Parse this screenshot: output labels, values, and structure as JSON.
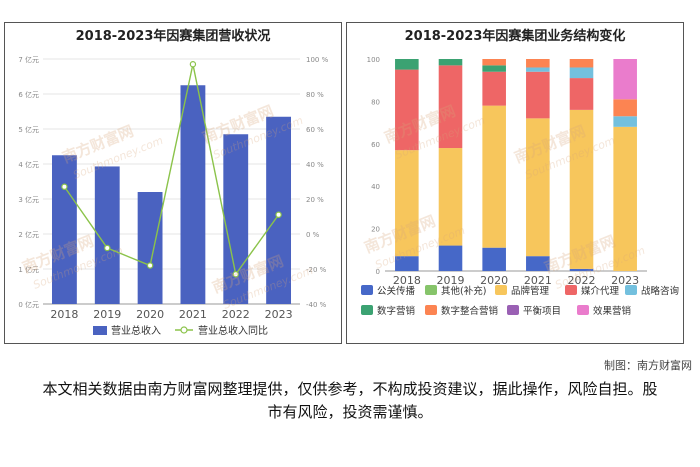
{
  "chart_data": [
    {
      "type": "bar+line",
      "title": "2018-2023年因赛集团营收状况",
      "categories": [
        "2018",
        "2019",
        "2020",
        "2021",
        "2022",
        "2023"
      ],
      "series": [
        {
          "name": "营业总收入",
          "type": "bar",
          "axis": "left",
          "unit": "亿元",
          "values": [
            4.25,
            3.93,
            3.2,
            6.25,
            4.85,
            5.35
          ],
          "color": "#4a62c0"
        },
        {
          "name": "营业总收入同比",
          "type": "line",
          "axis": "right",
          "unit": "%",
          "values": [
            27,
            -8,
            -18,
            97,
            -23,
            11
          ],
          "color": "#8bc34a"
        }
      ],
      "y_left": {
        "min": 0,
        "max": 7,
        "step": 1,
        "tick_suffix": "亿元"
      },
      "y_right": {
        "min": -40,
        "max": 100,
        "step": 20,
        "tick_suffix": "%"
      },
      "grid": true,
      "legend_position": "bottom"
    },
    {
      "type": "stacked-bar",
      "title": "2018-2023年因赛集团业务结构变化",
      "categories": [
        "2018",
        "2019",
        "2020",
        "2021",
        "2022",
        "2023"
      ],
      "y_axis": {
        "min": 0,
        "max": 100,
        "step": 20
      },
      "series": [
        {
          "name": "公关传播",
          "color": "#4668c8",
          "values": [
            7,
            12,
            11,
            7,
            1,
            0
          ]
        },
        {
          "name": "其他(补充)",
          "color": "#86c46a",
          "values": [
            0,
            0,
            0,
            0,
            0,
            0
          ]
        },
        {
          "name": "品牌管理",
          "color": "#f7c65c",
          "values": [
            50,
            46,
            67,
            65,
            75,
            68
          ]
        },
        {
          "name": "媒介代理",
          "color": "#ee6666",
          "values": [
            38,
            39,
            16,
            22,
            15,
            0
          ]
        },
        {
          "name": "战略咨询",
          "color": "#73c0de",
          "values": [
            0,
            0,
            0,
            2,
            5,
            5
          ]
        },
        {
          "name": "数字营销",
          "color": "#3ba272",
          "values": [
            5,
            3,
            3,
            0,
            0,
            0
          ]
        },
        {
          "name": "数字整合营销",
          "color": "#fc8452",
          "values": [
            0,
            0,
            3,
            4,
            4,
            8
          ]
        },
        {
          "name": "平衡项目",
          "color": "#9a60b4",
          "values": [
            0,
            0,
            0,
            0,
            0,
            0
          ]
        },
        {
          "name": "效果营销",
          "color": "#ea7ccc",
          "values": [
            0,
            0,
            0,
            0,
            0,
            19
          ]
        }
      ],
      "grid": false,
      "legend_position": "bottom"
    }
  ],
  "watermark": {
    "brand": "南方财富网",
    "site": "Southmoney.com"
  },
  "footer": {
    "credit": "制图：南方财富网",
    "disclaimer": "本文相关数据由南方财富网整理提供，仅供参考，不构成投资建议，据此操作，风险自担。股市有风险，投资需谨慎。"
  }
}
